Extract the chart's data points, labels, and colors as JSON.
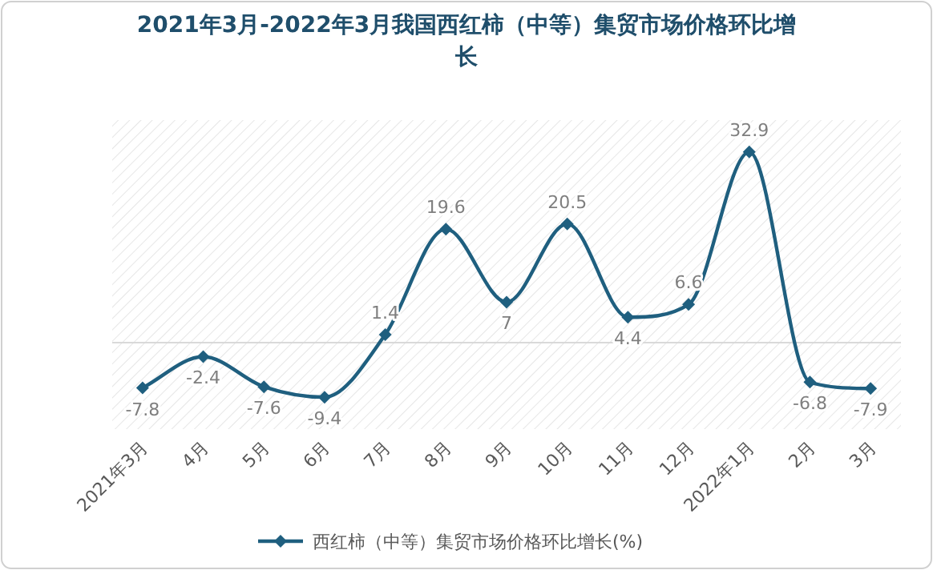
{
  "chart_data": {
    "type": "line",
    "title": "2021年3月-2022年3月我国西红柿（中等）集贸市场价格环比增长",
    "categories": [
      "2021年3月",
      "4月",
      "5月",
      "6月",
      "7月",
      "8月",
      "9月",
      "10月",
      "11月",
      "12月",
      "2022年1月",
      "2月",
      "3月"
    ],
    "series": [
      {
        "name": "西红柿（中等）集贸市场价格环比增长(%)",
        "color": "#1f5f7f",
        "values": [
          -7.8,
          -2.4,
          -7.6,
          -9.4,
          1.4,
          19.6,
          7,
          20.5,
          4.4,
          6.6,
          32.9,
          -6.8,
          -7.9
        ]
      }
    ],
    "data_labels": true,
    "legend": "bottom",
    "marker": "diamond",
    "line_style": "solid",
    "relative": false
  }
}
